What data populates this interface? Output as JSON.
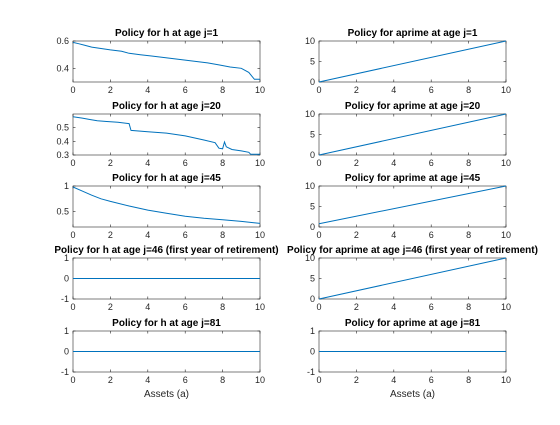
{
  "figure": {
    "xlabel": "Assets (a)"
  },
  "colors": {
    "line": "#0072BD",
    "axis": "#262626",
    "background": "#ffffff"
  },
  "chart_data": [
    {
      "type": "line",
      "title": "Policy for h at age j=1",
      "xlabel": "",
      "ylabel": "",
      "xlim": [
        0,
        10
      ],
      "ylim": [
        0.3,
        0.6
      ],
      "xticks": [
        "0",
        "2",
        "4",
        "6",
        "8",
        "10"
      ],
      "yticks": [
        "0.4",
        "0.6"
      ],
      "ytick_values": [
        0.4,
        0.6
      ],
      "x": [
        0,
        0.3,
        0.6,
        1.0,
        1.5,
        2.0,
        2.6,
        3.0,
        3.6,
        4.2,
        4.8,
        5.4,
        6.0,
        6.6,
        7.2,
        7.8,
        8.4,
        9.0,
        9.4,
        9.7,
        10.0
      ],
      "y": [
        0.59,
        0.58,
        0.57,
        0.555,
        0.545,
        0.535,
        0.525,
        0.51,
        0.5,
        0.49,
        0.48,
        0.47,
        0.46,
        0.45,
        0.44,
        0.425,
        0.41,
        0.4,
        0.37,
        0.32,
        0.32
      ]
    },
    {
      "type": "line",
      "title": "Policy for aprime at age j=1",
      "xlabel": "",
      "ylabel": "",
      "xlim": [
        0,
        10
      ],
      "ylim": [
        0,
        10
      ],
      "xticks": [
        "0",
        "2",
        "4",
        "6",
        "8",
        "10"
      ],
      "yticks": [
        "0",
        "5",
        "10"
      ],
      "ytick_values": [
        0,
        5,
        10
      ],
      "x": [
        0,
        10
      ],
      "y": [
        0,
        10
      ]
    },
    {
      "type": "line",
      "title": "Policy for h at age j=20",
      "xlabel": "",
      "ylabel": "",
      "xlim": [
        0,
        10
      ],
      "ylim": [
        0.3,
        0.6
      ],
      "xticks": [
        "0",
        "2",
        "4",
        "6",
        "8",
        "10"
      ],
      "yticks": [
        "0.3",
        "0.4",
        "0.5"
      ],
      "ytick_values": [
        0.3,
        0.4,
        0.5
      ],
      "x": [
        0,
        0.5,
        0.9,
        1.3,
        1.8,
        2.4,
        3.0,
        3.1,
        4.0,
        5.0,
        6.0,
        7.0,
        7.6,
        7.8,
        8.0,
        8.1,
        8.2,
        8.5,
        9.0,
        9.4,
        9.5,
        10.0
      ],
      "y": [
        0.58,
        0.57,
        0.56,
        0.55,
        0.545,
        0.54,
        0.53,
        0.48,
        0.47,
        0.46,
        0.44,
        0.41,
        0.39,
        0.35,
        0.345,
        0.395,
        0.36,
        0.34,
        0.33,
        0.32,
        0.305,
        0.305
      ]
    },
    {
      "type": "line",
      "title": "Policy for aprime at age j=20",
      "xlabel": "",
      "ylabel": "",
      "xlim": [
        0,
        10
      ],
      "ylim": [
        0,
        10
      ],
      "xticks": [
        "0",
        "2",
        "4",
        "6",
        "8",
        "10"
      ],
      "yticks": [
        "0",
        "5",
        "10"
      ],
      "ytick_values": [
        0,
        5,
        10
      ],
      "x": [
        0,
        10
      ],
      "y": [
        0,
        10
      ]
    },
    {
      "type": "line",
      "title": "Policy for h at age j=45",
      "xlabel": "",
      "ylabel": "",
      "xlim": [
        0,
        10
      ],
      "ylim": [
        0.2,
        1
      ],
      "xticks": [
        "0",
        "2",
        "4",
        "6",
        "8",
        "10"
      ],
      "yticks": [
        "0.5",
        "1"
      ],
      "ytick_values": [
        0.5,
        1
      ],
      "x": [
        0,
        0.5,
        1.0,
        1.5,
        2.0,
        3.0,
        4.0,
        5.0,
        6.0,
        7.0,
        8.0,
        9.0,
        10.0
      ],
      "y": [
        0.98,
        0.9,
        0.82,
        0.75,
        0.7,
        0.61,
        0.53,
        0.47,
        0.41,
        0.37,
        0.34,
        0.31,
        0.27
      ]
    },
    {
      "type": "line",
      "title": "Policy for aprime at age j=45",
      "xlabel": "",
      "ylabel": "",
      "xlim": [
        0,
        10
      ],
      "ylim": [
        0,
        10
      ],
      "xticks": [
        "0",
        "2",
        "4",
        "6",
        "8",
        "10"
      ],
      "yticks": [
        "0",
        "5",
        "10"
      ],
      "ytick_values": [
        0,
        5,
        10
      ],
      "x": [
        0,
        10
      ],
      "y": [
        0.8,
        10
      ]
    },
    {
      "type": "line",
      "title": "Policy for h at age j=46 (first year of retirement)",
      "xlabel": "",
      "ylabel": "",
      "xlim": [
        0,
        10
      ],
      "ylim": [
        -1,
        1
      ],
      "xticks": [
        "0",
        "2",
        "4",
        "6",
        "8",
        "10"
      ],
      "yticks": [
        "-1",
        "0",
        "1"
      ],
      "ytick_values": [
        -1,
        0,
        1
      ],
      "x": [
        0,
        10
      ],
      "y": [
        0,
        0
      ]
    },
    {
      "type": "line",
      "title": "Policy for aprime at age j=46 (first year of retirement)",
      "xlabel": "",
      "ylabel": "",
      "xlim": [
        0,
        10
      ],
      "ylim": [
        0,
        10
      ],
      "xticks": [
        "0",
        "2",
        "4",
        "6",
        "8",
        "10"
      ],
      "yticks": [
        "0",
        "5",
        "10"
      ],
      "ytick_values": [
        0,
        5,
        10
      ],
      "x": [
        0,
        10
      ],
      "y": [
        0,
        10
      ]
    },
    {
      "type": "line",
      "title": "Policy for h at age j=81",
      "xlabel": "Assets (a)",
      "ylabel": "",
      "xlim": [
        0,
        10
      ],
      "ylim": [
        -1,
        1
      ],
      "xticks": [
        "0",
        "2",
        "4",
        "6",
        "8",
        "10"
      ],
      "yticks": [
        "-1",
        "0",
        "1"
      ],
      "ytick_values": [
        -1,
        0,
        1
      ],
      "x": [
        0,
        10
      ],
      "y": [
        0,
        0
      ]
    },
    {
      "type": "line",
      "title": "Policy for aprime at age j=81",
      "xlabel": "Assets (a)",
      "ylabel": "",
      "xlim": [
        0,
        10
      ],
      "ylim": [
        -1,
        1
      ],
      "xticks": [
        "0",
        "2",
        "4",
        "6",
        "8",
        "10"
      ],
      "yticks": [
        "-1",
        "0",
        "1"
      ],
      "ytick_values": [
        -1,
        0,
        1
      ],
      "x": [
        0,
        10
      ],
      "y": [
        0,
        0
      ]
    }
  ]
}
